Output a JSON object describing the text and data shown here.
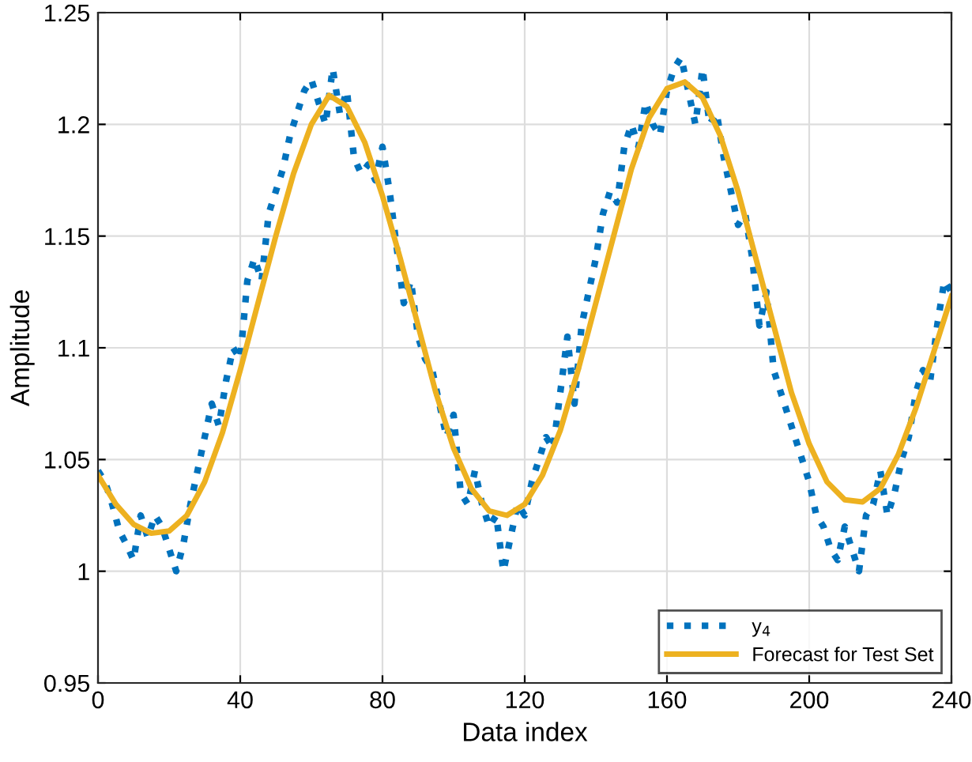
{
  "chart_data": {
    "type": "line",
    "xlabel": "Data index",
    "ylabel": "Amplitude",
    "xlim": [
      0,
      240
    ],
    "xticks": [
      0,
      40,
      80,
      120,
      160,
      200,
      240
    ],
    "ylim": [
      0.95,
      1.25
    ],
    "yticks": [
      0.95,
      1,
      1.05,
      1.1,
      1.15,
      1.2,
      1.25
    ],
    "grid": true,
    "legend": "bottom right",
    "series": [
      {
        "name": "y$_{4}$",
        "color": "#0072bd",
        "line_style": "dotted",
        "x": [
          0,
          2,
          4,
          6,
          8,
          10,
          12,
          14,
          16,
          18,
          20,
          22,
          24,
          26,
          28,
          30,
          32,
          34,
          36,
          38,
          40,
          42,
          44,
          46,
          48,
          50,
          52,
          54,
          56,
          58,
          60,
          62,
          64,
          66,
          68,
          70,
          72,
          74,
          76,
          78,
          80,
          82,
          84,
          86,
          88,
          90,
          92,
          94,
          96,
          98,
          100,
          102,
          104,
          106,
          108,
          110,
          112,
          114,
          116,
          118,
          120,
          122,
          124,
          126,
          128,
          130,
          132,
          134,
          136,
          138,
          140,
          142,
          144,
          146,
          148,
          150,
          152,
          154,
          156,
          158,
          160,
          162,
          164,
          166,
          168,
          170,
          172,
          174,
          176,
          178,
          180,
          182,
          184,
          186,
          188,
          190,
          192,
          194,
          196,
          198,
          200,
          202,
          204,
          206,
          208,
          210,
          212,
          214,
          216,
          218,
          220,
          222,
          224,
          226,
          228,
          230,
          232,
          234,
          236,
          238,
          240
        ],
        "values": [
          1.045,
          1.04,
          1.03,
          1.018,
          1.012,
          1.005,
          1.025,
          1.015,
          1.025,
          1.02,
          1.01,
          1.0,
          1.012,
          1.03,
          1.045,
          1.06,
          1.075,
          1.065,
          1.085,
          1.1,
          1.095,
          1.13,
          1.14,
          1.13,
          1.16,
          1.17,
          1.18,
          1.195,
          1.205,
          1.215,
          1.22,
          1.21,
          1.2,
          1.225,
          1.205,
          1.215,
          1.185,
          1.178,
          1.182,
          1.175,
          1.19,
          1.17,
          1.145,
          1.12,
          1.13,
          1.105,
          1.095,
          1.09,
          1.075,
          1.06,
          1.07,
          1.035,
          1.03,
          1.045,
          1.03,
          1.02,
          1.025,
          1.0,
          1.015,
          1.03,
          1.025,
          1.04,
          1.05,
          1.06,
          1.055,
          1.08,
          1.105,
          1.075,
          1.11,
          1.125,
          1.14,
          1.16,
          1.17,
          1.165,
          1.19,
          1.2,
          1.19,
          1.21,
          1.2,
          1.195,
          1.215,
          1.225,
          1.23,
          1.215,
          1.2,
          1.225,
          1.2,
          1.205,
          1.185,
          1.17,
          1.155,
          1.16,
          1.14,
          1.11,
          1.125,
          1.09,
          1.08,
          1.07,
          1.06,
          1.05,
          1.04,
          1.025,
          1.02,
          1.01,
          1.005,
          1.02,
          1.01,
          1.0,
          1.025,
          1.03,
          1.045,
          1.025,
          1.035,
          1.05,
          1.06,
          1.08,
          1.09,
          1.085,
          1.11,
          1.13,
          1.125
        ]
      },
      {
        "name": "Forecast for Test Set",
        "color": "#edb120",
        "line_style": "solid",
        "x": [
          0,
          5,
          10,
          15,
          20,
          25,
          30,
          35,
          40,
          45,
          50,
          55,
          60,
          65,
          70,
          75,
          80,
          85,
          90,
          95,
          100,
          105,
          110,
          115,
          120,
          125,
          130,
          135,
          140,
          145,
          150,
          155,
          160,
          165,
          170,
          175,
          180,
          185,
          190,
          195,
          200,
          205,
          210,
          215,
          220,
          225,
          230,
          235,
          240
        ],
        "values": [
          1.043,
          1.03,
          1.021,
          1.017,
          1.018,
          1.025,
          1.04,
          1.062,
          1.09,
          1.12,
          1.15,
          1.178,
          1.2,
          1.213,
          1.208,
          1.192,
          1.168,
          1.14,
          1.11,
          1.08,
          1.055,
          1.037,
          1.027,
          1.025,
          1.03,
          1.043,
          1.063,
          1.09,
          1.12,
          1.15,
          1.18,
          1.203,
          1.216,
          1.219,
          1.212,
          1.195,
          1.17,
          1.14,
          1.11,
          1.08,
          1.057,
          1.04,
          1.032,
          1.031,
          1.037,
          1.052,
          1.073,
          1.098,
          1.123
        ]
      }
    ]
  }
}
